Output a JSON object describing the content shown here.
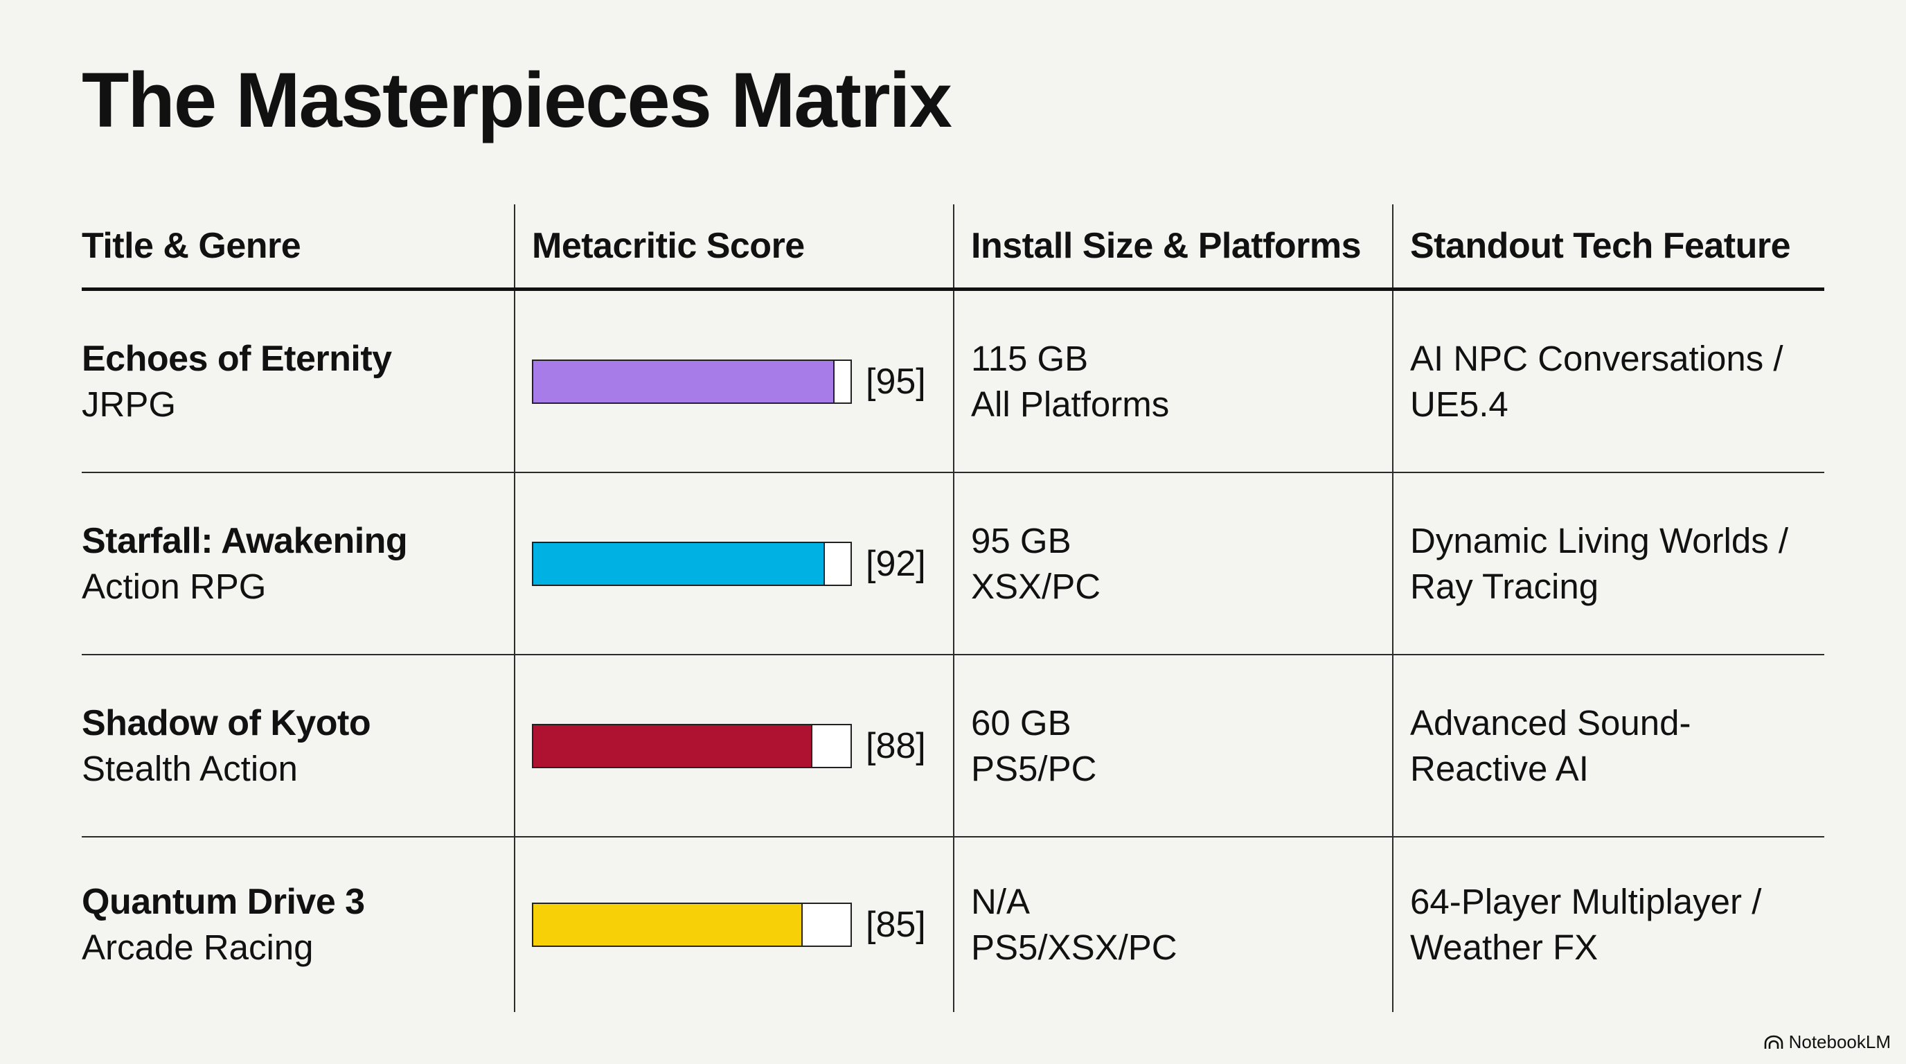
{
  "title": "The Masterpieces Matrix",
  "columns": [
    "Title & Genre",
    "Metacritic Score",
    "Install Size & Platforms",
    "Standout Tech Feature"
  ],
  "rows": [
    {
      "title": "Echoes of Eternity",
      "genre": "JRPG",
      "score": 95,
      "score_label": "[95]",
      "score_color": "#a77ce8",
      "size": "115 GB",
      "platforms": "All Platforms",
      "feature_line1": "AI NPC Conversations /",
      "feature_line2": "UE5.4"
    },
    {
      "title": "Starfall: Awakening",
      "genre": "Action RPG",
      "score": 92,
      "score_label": "[92]",
      "score_color": "#00b1e4",
      "size": "95 GB",
      "platforms": "XSX/PC",
      "feature_line1": "Dynamic Living Worlds /",
      "feature_line2": "Ray Tracing"
    },
    {
      "title": "Shadow of Kyoto",
      "genre": "Stealth Action",
      "score": 88,
      "score_label": "[88]",
      "score_color": "#af1230",
      "size": "60 GB",
      "platforms": "PS5/PC",
      "feature_line1": "Advanced Sound-",
      "feature_line2": "Reactive AI"
    },
    {
      "title": "Quantum Drive 3",
      "genre": "Arcade Racing",
      "score": 85,
      "score_label": "[85]",
      "score_color": "#f8d007",
      "size": "N/A",
      "platforms": "PS5/XSX/PC",
      "feature_line1": "64-Player Multiplayer /",
      "feature_line2": "Weather FX"
    }
  ],
  "brand": {
    "name": "NotebookLM",
    "icon": "notebooklm-logo-icon"
  }
}
